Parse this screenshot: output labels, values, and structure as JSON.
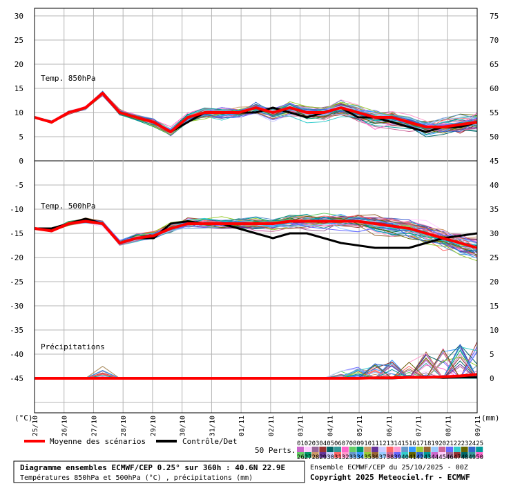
{
  "chart_data": {
    "type": "line",
    "left_axis": {
      "unit": "(°C)",
      "ticks": [
        30,
        25,
        20,
        15,
        10,
        5,
        0,
        -5,
        -10,
        -15,
        -20,
        -25,
        -30,
        -35,
        -40,
        -45
      ]
    },
    "right_axis": {
      "unit": "(mm)",
      "ticks": [
        75,
        70,
        65,
        60,
        55,
        50,
        45,
        40,
        35,
        30,
        25,
        20,
        15,
        10,
        5,
        0
      ]
    },
    "x_dates": [
      "25/10",
      "26/10",
      "27/10",
      "28/10",
      "29/10",
      "30/10",
      "31/10",
      "01/11",
      "02/11",
      "03/11",
      "04/11",
      "05/11",
      "06/11",
      "07/11",
      "08/11",
      "09/11"
    ],
    "grid": true,
    "panels": {
      "t850": {
        "label": "Temp. 850hPa"
      },
      "t500": {
        "label": "Temp. 500hPa"
      },
      "precip": {
        "label": "Précipitations"
      }
    },
    "series": [
      {
        "name": "Moyenne des scénarios",
        "color": "#ff0000",
        "t850": [
          9,
          8,
          10,
          11,
          14,
          10,
          9,
          8,
          6,
          9,
          10,
          10,
          10,
          11,
          10,
          11,
          10,
          10,
          11,
          10,
          9,
          9,
          8,
          7,
          7,
          7.5,
          8
        ],
        "t500": [
          -14,
          -14.5,
          -13,
          -12.5,
          -13,
          -17,
          -16,
          -15.5,
          -14,
          -13,
          -13,
          -13,
          -13,
          -13,
          -13,
          -12.5,
          -12.5,
          -12.5,
          -12.5,
          -12.5,
          -13,
          -13.5,
          -14,
          -15,
          -16,
          -17,
          -18
        ],
        "precip": [
          0,
          0,
          0,
          0,
          0,
          0,
          0,
          0,
          0,
          0,
          0,
          0,
          0,
          0,
          0,
          0,
          0,
          0,
          0,
          0,
          0.1,
          0.1,
          0.2,
          0.2,
          0.3,
          0.5,
          0.8
        ]
      },
      {
        "name": "Contrôle/Det",
        "color": "#000000",
        "t850": [
          9,
          8,
          10,
          11,
          14,
          10,
          9,
          8,
          6,
          8,
          10,
          10,
          10,
          10,
          11,
          10,
          9,
          10,
          11,
          9,
          9,
          8,
          7,
          6,
          7,
          7,
          8
        ],
        "t500": [
          -14,
          -14,
          -13,
          -12,
          -13,
          -17,
          -16,
          -16,
          -13,
          -12.5,
          -13,
          -13,
          -14,
          -15,
          -16,
          -15,
          -15,
          -16,
          -17,
          -17.5,
          -18,
          -18,
          -18,
          -17,
          -16,
          -15.5,
          -15
        ],
        "precip": [
          0,
          0,
          0,
          0,
          0,
          0,
          0,
          0,
          0,
          0,
          0,
          0,
          0,
          0,
          0,
          0,
          0,
          0,
          0,
          0,
          0,
          0,
          0.2,
          0.3,
          0.1,
          0.2,
          0.2
        ]
      }
    ],
    "legend": {
      "mean_label": "Moyenne des scénarios",
      "control_label": "Contrôle/Det",
      "perts_label": "50 Perts.",
      "perts_numbers_row1": [
        "01",
        "02",
        "03",
        "04",
        "05",
        "06",
        "07",
        "08",
        "09",
        "10",
        "11",
        "12",
        "13",
        "14",
        "15",
        "16",
        "17",
        "18",
        "19",
        "20",
        "21",
        "22",
        "23",
        "24",
        "25"
      ],
      "perts_numbers_row2": [
        "26",
        "27",
        "28",
        "29",
        "30",
        "31",
        "32",
        "33",
        "34",
        "35",
        "36",
        "37",
        "38",
        "39",
        "40",
        "41",
        "42",
        "43",
        "44",
        "45",
        "46",
        "47",
        "48",
        "49",
        "50"
      ],
      "perts_colors": [
        "#cc66cc",
        "#ffccff",
        "#996699",
        "#993333",
        "#006666",
        "#339999",
        "#ff66cc",
        "#66cc66",
        "#009966",
        "#cc9966",
        "#663399",
        "#ccccff",
        "#ff6666",
        "#ff99cc",
        "#6699cc",
        "#3399ff",
        "#99cc33",
        "#996633",
        "#99ccff",
        "#cc6699",
        "#6666ff",
        "#33cccc",
        "#666600",
        "#3366cc",
        "#009999"
      ]
    }
  },
  "footer": {
    "title": "Diagramme ensembles ECMWF/CEP 0.25° sur 360h : 40.6N 22.9E",
    "subtitle": "Températures 850hPa et 500hPa (°C) , précipitations (mm)",
    "run": "Ensemble ECMWF/CEP du 25/10/2025 - 00Z",
    "copyright": "Copyright 2025 Meteociel.fr - ECMWF"
  },
  "colors": {
    "mean": "#ff0000",
    "control": "#000000",
    "grid": "#b4b4b4",
    "zero_line": "#808080"
  }
}
